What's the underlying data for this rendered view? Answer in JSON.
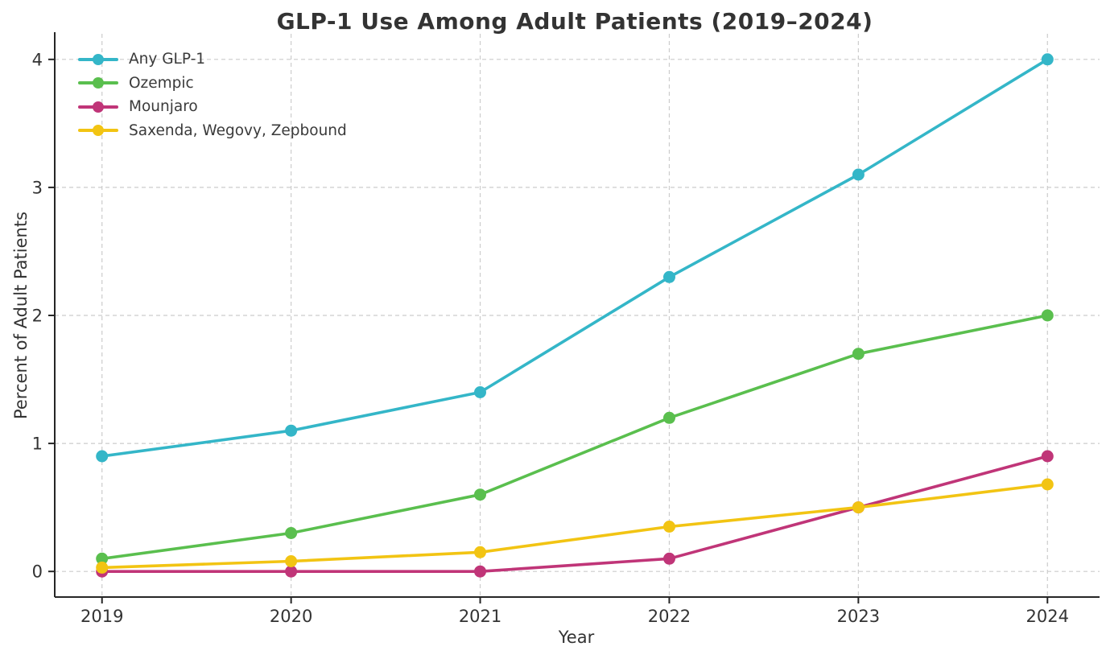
{
  "chart_data": {
    "type": "line",
    "title": "GLP-1 Use Among Adult Patients (2019–2024)",
    "xlabel": "Year",
    "ylabel": "Percent of Adult Patients",
    "x": [
      2019,
      2020,
      2021,
      2022,
      2023,
      2024
    ],
    "xlim": [
      2018.75,
      2024.25
    ],
    "ylim": [
      -0.2,
      4.2
    ],
    "yticks": [
      0,
      1,
      2,
      3,
      4
    ],
    "grid": "dashed gridlines, both axes, at every year and every integer percent",
    "legend_position": "upper left, no frame",
    "series": [
      {
        "name": "Any GLP-1",
        "color": "#34b6c8",
        "values": [
          0.9,
          1.1,
          1.4,
          2.3,
          3.1,
          4.0
        ]
      },
      {
        "name": "Ozempic",
        "color": "#5abf4e",
        "values": [
          0.1,
          0.3,
          0.6,
          1.2,
          1.7,
          2.0
        ]
      },
      {
        "name": "Mounjaro",
        "color": "#c03578",
        "values": [
          0.0,
          0.0,
          0.0,
          0.1,
          0.5,
          0.9
        ]
      },
      {
        "name": "Saxenda, Wegovy, Zepbound",
        "color": "#f2c413",
        "values": [
          0.03,
          0.08,
          0.15,
          0.35,
          0.5,
          0.68
        ]
      }
    ],
    "styles": {
      "grid_color": "#cccccc",
      "axis_color": "#262626",
      "tick_text_color": "#333333",
      "title_color": "#333333",
      "line_width": 3.6,
      "marker_radius": 7.5
    }
  }
}
